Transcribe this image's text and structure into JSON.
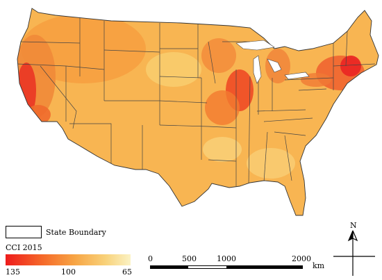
{
  "legend": {
    "boundary_label": "State Boundary",
    "cci_title": "CCI 2015",
    "cci_ticks": [
      "135",
      "100",
      "65"
    ]
  },
  "scale_bar": {
    "labels": [
      "0",
      "500",
      "1000",
      "2000"
    ],
    "unit": "km"
  },
  "north_arrow": {
    "label": "N"
  }
}
